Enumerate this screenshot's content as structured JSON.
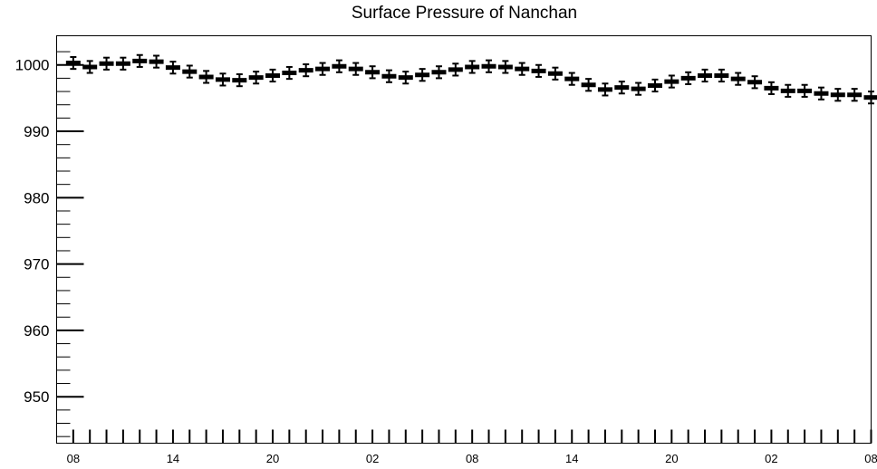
{
  "chart_data": {
    "type": "line",
    "title": "Surface Pressure of Nanchan",
    "xlabel": "",
    "ylabel": "",
    "ylim": [
      943,
      1004.4
    ],
    "yticks": [
      1000,
      990,
      980,
      970,
      960,
      950
    ],
    "ytick_labels": [
      "1000",
      "990",
      "980",
      "970",
      "960",
      "950"
    ],
    "xlim": [
      -1,
      48
    ],
    "xticks": [
      0,
      6,
      12,
      18,
      24,
      30,
      36,
      42,
      48
    ],
    "xtick_labels": [
      "08",
      "14",
      "20",
      "02",
      "08",
      "14",
      "20",
      "02",
      "08"
    ],
    "grid": false,
    "series": [
      {
        "marker": "bar-with-error",
        "x": [
          0,
          1,
          2,
          3,
          4,
          5,
          6,
          7,
          8,
          9,
          10,
          11,
          12,
          13,
          14,
          15,
          16,
          17,
          18,
          19,
          20,
          21,
          22,
          23,
          24,
          25,
          26,
          27,
          28,
          29,
          30,
          31,
          32,
          33,
          34,
          35,
          36,
          37,
          38,
          39,
          40,
          41,
          42,
          43,
          44,
          45,
          46,
          47,
          48
        ],
        "y": [
          1000.3,
          999.7,
          1000.2,
          1000.2,
          1000.6,
          1000.5,
          999.6,
          999.0,
          998.2,
          997.8,
          997.7,
          998.1,
          998.4,
          998.8,
          999.2,
          999.4,
          999.8,
          999.4,
          998.9,
          998.3,
          998.1,
          998.5,
          998.9,
          999.3,
          999.7,
          999.8,
          999.7,
          999.4,
          999.1,
          998.7,
          997.9,
          997.0,
          996.3,
          996.6,
          996.4,
          996.9,
          997.5,
          998.0,
          998.4,
          998.4,
          997.9,
          997.4,
          996.5,
          996.1,
          996.1,
          995.7,
          995.5,
          995.5,
          995.1
        ],
        "error": 0.9
      }
    ]
  }
}
